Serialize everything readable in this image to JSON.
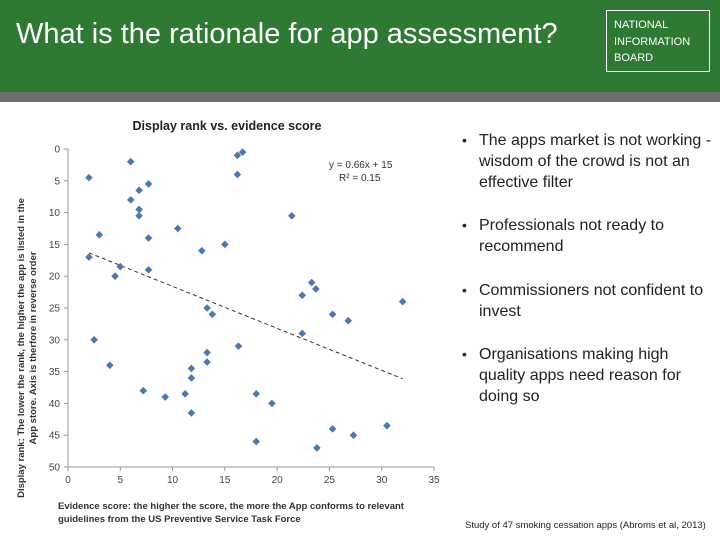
{
  "slide": {
    "title": "What is the rationale for app assessment?",
    "logo_lines": [
      "NATIONAL",
      "INFORMATION",
      "BOARD"
    ],
    "bullets": [
      "The apps market is not working -  wisdom of the crowd is not an effective filter",
      "Professionals not ready to recommend",
      "Commissioners not confident to invest",
      "Organisations making high quality apps need reason for doing so"
    ],
    "citation": "Study of 47 smoking cessation apps (Abroms et al, 2013)",
    "colors": {
      "header": "#2e7a32",
      "rule": "#6e6e6e",
      "marker": "#4a78b0"
    }
  },
  "chart_data": {
    "type": "scatter",
    "title": "Display rank  vs. evidence score",
    "xlabel_lines": [
      "Evidence score: the higher the score, the more the App conforms to relevant",
      "guidelines from the US Preventive Service Task Force"
    ],
    "ylabel_lines": [
      "Display rank: The lower the rank, the higher the app is listed in the",
      "App store. Axis is therfore in reverse order"
    ],
    "xlim": [
      0,
      35
    ],
    "ylim": [
      0,
      50
    ],
    "y_reversed": true,
    "xticks": [
      "0",
      "5",
      "10",
      "15",
      "20",
      "25",
      "30",
      "35"
    ],
    "yticks": [
      "0",
      "5",
      "10",
      "15",
      "20",
      "25",
      "30",
      "35",
      "40",
      "45",
      "50"
    ],
    "grid": false,
    "trendline": {
      "slope": 0.66,
      "intercept": 15,
      "x_range": [
        2,
        32
      ]
    },
    "equation_lines": [
      "y = 0.66x + 15",
      "R² = 0.15"
    ],
    "points": [
      [
        2,
        4.5
      ],
      [
        2,
        17
      ],
      [
        2.5,
        30
      ],
      [
        3,
        13.5
      ],
      [
        4,
        34
      ],
      [
        4.5,
        20
      ],
      [
        5,
        18.5
      ],
      [
        6,
        2
      ],
      [
        6,
        8
      ],
      [
        6.8,
        6.5
      ],
      [
        6.8,
        9.5
      ],
      [
        6.8,
        10.5
      ],
      [
        7.2,
        38
      ],
      [
        7.7,
        14
      ],
      [
        7.7,
        19
      ],
      [
        7.7,
        5.5
      ],
      [
        9.3,
        39
      ],
      [
        10.5,
        12.5
      ],
      [
        11.2,
        38.5
      ],
      [
        11.8,
        34.5
      ],
      [
        11.8,
        36
      ],
      [
        11.8,
        41.5
      ],
      [
        12.8,
        16
      ],
      [
        13.3,
        25
      ],
      [
        13.3,
        32
      ],
      [
        13.3,
        33.5
      ],
      [
        13.8,
        26
      ],
      [
        15,
        15
      ],
      [
        16.2,
        1
      ],
      [
        16.2,
        4
      ],
      [
        16.3,
        31
      ],
      [
        16.7,
        0.5
      ],
      [
        18,
        38.5
      ],
      [
        18,
        46
      ],
      [
        19.5,
        40
      ],
      [
        21.4,
        10.5
      ],
      [
        22.4,
        23
      ],
      [
        22.4,
        29
      ],
      [
        23.3,
        21
      ],
      [
        23.7,
        22
      ],
      [
        23.8,
        47
      ],
      [
        25.3,
        26
      ],
      [
        25.3,
        44
      ],
      [
        26.8,
        27
      ],
      [
        27.3,
        45
      ],
      [
        30.5,
        43.5
      ],
      [
        32,
        24
      ]
    ]
  }
}
